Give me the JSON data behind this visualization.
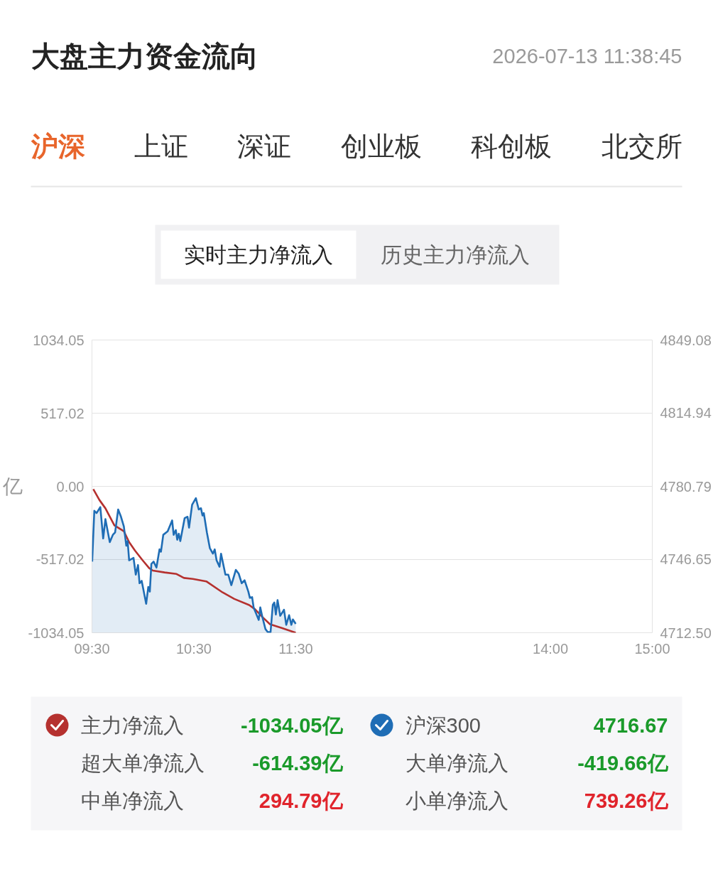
{
  "chart_data": {
    "type": "line",
    "title": "大盘主力资金流向",
    "subtitle": "2026-07-13 11:38:45",
    "ylabel": "亿",
    "annotations": [
      "沪深",
      "上证",
      "深证",
      "创业板",
      "科创板",
      "北交所",
      "实时主力净流入",
      "历史主力净流入",
      "-1034.05亿",
      "4716.67",
      "超大单净流入",
      "-614.39亿",
      "大单净流入",
      "-419.66亿",
      "中单净流入",
      "294.79亿",
      "小单净流入",
      "739.26亿"
    ],
    "xlim": [
      9.5,
      15
    ],
    "xticks": [
      {
        "value": 9.5,
        "label": "09:30"
      },
      {
        "value": 10.5,
        "label": "10:30"
      },
      {
        "value": 11.5,
        "label": "11:30"
      },
      {
        "value": 14,
        "label": "14:00"
      },
      {
        "value": 15,
        "label": "15:00"
      }
    ],
    "ylim": [
      -1034.05,
      1034.05
    ],
    "yticks": [
      1034.05,
      517.02,
      {
        "value": 0,
        "label": "0.00"
      },
      -517.02,
      -1034.05
    ],
    "y2lim": [
      4712.5,
      4849.08
    ],
    "y2ticks": [
      4849.08,
      4814.94,
      4780.79,
      4746.65,
      {
        "value": 4712.5,
        "label": "4712.50"
      }
    ],
    "grid": "y",
    "legend": "bottom",
    "series": [
      {
        "name": "主力净流入",
        "color": "#b5312f",
        "x": [
          9.513,
          9.573,
          9.632,
          9.72,
          9.813,
          9.865,
          9.923,
          9.997,
          10.062,
          10.098,
          10.213,
          10.33,
          10.403,
          10.49,
          10.622,
          10.782,
          10.897,
          11.043,
          11.1,
          11.173,
          11.247,
          11.362,
          11.5
        ],
        "values": [
          -19,
          -96,
          -155,
          -275,
          -317,
          -394,
          -454,
          -522,
          -578,
          -595,
          -608,
          -619,
          -647,
          -654,
          -671,
          -749,
          -795,
          -838,
          -868,
          -923,
          -974,
          -1000,
          -1034.05
        ]
      },
      {
        "name": "沪深300",
        "type": "area",
        "axis": "y2",
        "color": "#1f6db5",
        "x": [
          9.502,
          9.523,
          9.545,
          9.582,
          9.61,
          9.632,
          9.675,
          9.705,
          9.727,
          9.757,
          9.785,
          9.813,
          9.837,
          9.85,
          9.865,
          9.908,
          9.93,
          9.952,
          9.967,
          9.988,
          10.032,
          10.053,
          10.068,
          10.083,
          10.105,
          10.133,
          10.163,
          10.177,
          10.2,
          10.243,
          10.287,
          10.302,
          10.323,
          10.337,
          10.352,
          10.367,
          10.41,
          10.438,
          10.453,
          10.483,
          10.52,
          10.548,
          10.57,
          10.585,
          10.598,
          10.628,
          10.657,
          10.687,
          10.705,
          10.723,
          10.752,
          10.767,
          10.81,
          10.838,
          10.868,
          10.912,
          10.94,
          10.97,
          10.998,
          11.035,
          11.05,
          11.072,
          11.087,
          11.137,
          11.152,
          11.173,
          11.203,
          11.225,
          11.253,
          11.275,
          11.29,
          11.305,
          11.322,
          11.348,
          11.385,
          11.407,
          11.435,
          11.457,
          11.472,
          11.5
        ],
        "values": [
          4745.7,
          4769.4,
          4768.3,
          4771.1,
          4756.5,
          4765.5,
          4754.8,
          4758.2,
          4759.3,
          4770.0,
          4766.6,
          4762.1,
          4753.1,
          4755.3,
          4746.3,
          4747.4,
          4739.6,
          4744.1,
          4735.6,
          4736.7,
          4726.0,
          4733.9,
          4731.7,
          4744.6,
          4745.7,
          4742.9,
          4751.4,
          4750.3,
          4758.2,
          4759.8,
          4764.9,
          4758.2,
          4760.4,
          4755.9,
          4758.7,
          4755.3,
          4766.0,
          4766.6,
          4761.5,
          4772.2,
          4775.3,
          4770.0,
          4770.6,
          4767.2,
          4768.3,
          4759.3,
          4752.0,
          4749.4,
          4751.4,
          4746.3,
          4743.3,
          4749.4,
          4739.6,
          4739.6,
          4734.7,
          4741.8,
          4740.1,
          4735.6,
          4737.0,
          4731.7,
          4728.8,
          4729.1,
          4724.3,
          4718.5,
          4724.3,
          4719.8,
          4714.2,
          4712.8,
          4712.8,
          4725.5,
          4726.6,
          4721.0,
          4727.7,
          4720.4,
          4723.2,
          4716.2,
          4720.7,
          4716.2,
          4718.7,
          4716.67
        ]
      }
    ]
  }
}
